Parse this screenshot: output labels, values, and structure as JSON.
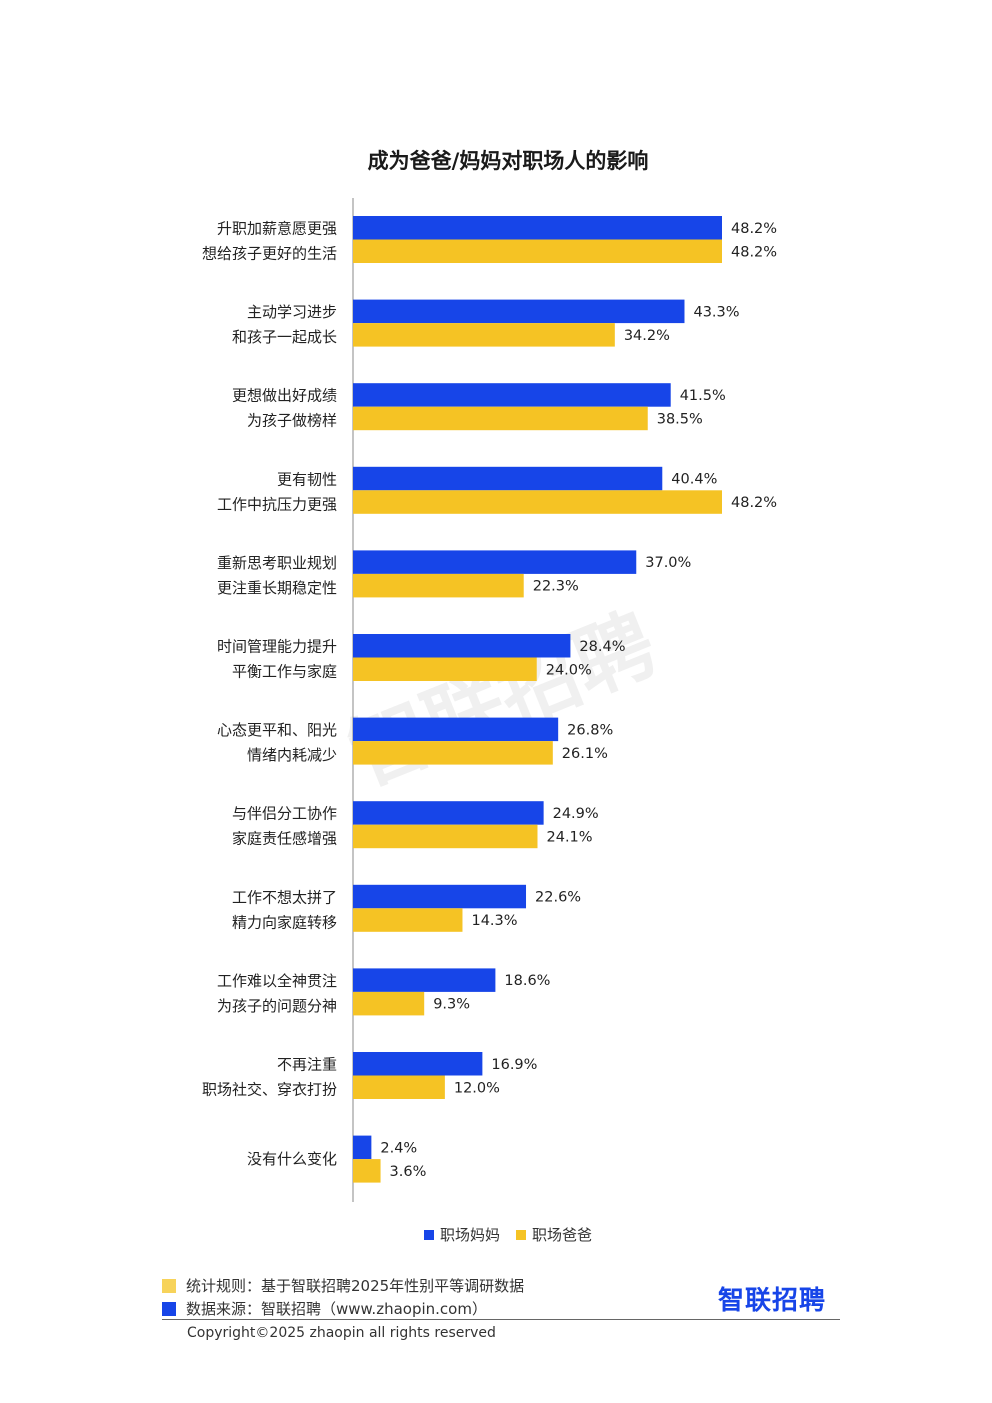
{
  "title": "成为爸爸/妈妈对职场人的影响",
  "colors": {
    "mom": "#1745e8",
    "dad": "#f5c324",
    "note_swatch": "#f7d35a"
  },
  "legend": [
    {
      "label": "职场妈妈",
      "color": "#1745e8"
    },
    {
      "label": "职场爸爸",
      "color": "#f5c324"
    }
  ],
  "chart_data": {
    "type": "bar",
    "orientation": "horizontal",
    "title": "成为爸爸/妈妈对职场人的影响",
    "categories": [
      [
        "升职加薪意愿更强",
        "想给孩子更好的生活"
      ],
      [
        "主动学习进步",
        "和孩子一起成长"
      ],
      [
        "更想做出好成绩",
        "为孩子做榜样"
      ],
      [
        "更有韧性",
        "工作中抗压力更强"
      ],
      [
        "重新思考职业规划",
        "更注重长期稳定性"
      ],
      [
        "时间管理能力提升",
        "平衡工作与家庭"
      ],
      [
        "心态更平和、阳光",
        "情绪内耗减少"
      ],
      [
        "与伴侣分工协作",
        "家庭责任感增强"
      ],
      [
        "工作不想太拼了",
        "精力向家庭转移"
      ],
      [
        "工作难以全神贯注",
        "为孩子的问题分神"
      ],
      [
        "不再注重",
        "职场社交、穿衣打扮"
      ],
      [
        "没有什么变化"
      ]
    ],
    "series": [
      {
        "name": "职场妈妈",
        "values": [
          48.2,
          43.3,
          41.5,
          40.4,
          37.0,
          28.4,
          26.8,
          24.9,
          22.6,
          18.6,
          16.9,
          2.4
        ]
      },
      {
        "name": "职场爸爸",
        "values": [
          48.2,
          34.2,
          38.5,
          48.2,
          22.3,
          24.0,
          26.1,
          24.1,
          14.3,
          9.3,
          12.0,
          3.6
        ]
      }
    ],
    "xlim": [
      0,
      48.2
    ],
    "grid": false,
    "legend_position": "bottom"
  },
  "footer": {
    "stat_rule": "统计规则：基于智联招聘2025年性别平等调研数据",
    "data_source": "数据来源：智联招聘（www.zhaopin.com）",
    "logo": "智联招聘",
    "copyright": "Copyright©2025 zhaopin all rights reserved"
  },
  "watermark": "智联招聘"
}
